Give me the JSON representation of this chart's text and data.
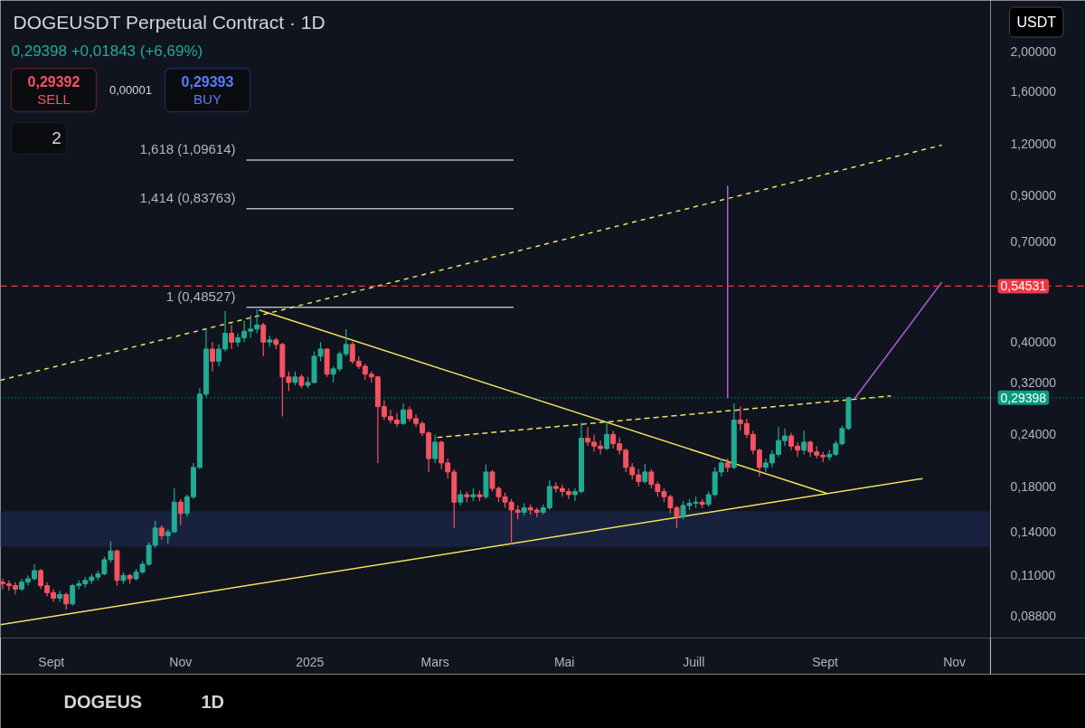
{
  "chart_data": {
    "type": "candlestick",
    "title": "DOGEUSDT Perpetual Contract · 1D",
    "subtitle": "0,29398 +0,01843 (+6,69%)",
    "annotations": [
      "0,29392",
      "SELL",
      "0,00001",
      "0,29393",
      "BUY",
      "2",
      "USDT",
      "DOGEUS",
      "1D"
    ],
    "x": [
      "2024-08-09",
      "2024-08-12",
      "2024-08-15",
      "2024-08-18",
      "2024-08-21",
      "2024-08-24",
      "2024-08-27",
      "2024-08-30",
      "2024-09-02",
      "2024-09-05",
      "2024-09-08",
      "2024-09-11",
      "2024-09-14",
      "2024-09-17",
      "2024-09-20",
      "2024-09-23",
      "2024-09-26",
      "2024-09-29",
      "2024-10-02",
      "2024-10-05",
      "2024-10-08",
      "2024-10-11",
      "2024-10-14",
      "2024-10-17",
      "2024-10-20",
      "2024-10-23",
      "2024-10-26",
      "2024-10-29",
      "2024-11-01",
      "2024-11-04",
      "2024-11-07",
      "2024-11-10",
      "2024-11-13",
      "2024-11-16",
      "2024-11-19",
      "2024-11-22",
      "2024-11-25",
      "2024-11-28",
      "2024-12-01",
      "2024-12-04",
      "2024-12-07",
      "2024-12-10",
      "2024-12-13",
      "2024-12-16",
      "2024-12-19",
      "2024-12-22",
      "2024-12-25",
      "2024-12-28",
      "2024-12-31",
      "2025-01-03",
      "2025-01-06",
      "2025-01-09",
      "2025-01-12",
      "2025-01-15",
      "2025-01-18",
      "2025-01-21",
      "2025-01-24",
      "2025-01-27",
      "2025-01-30",
      "2025-02-02",
      "2025-02-05",
      "2025-02-08",
      "2025-02-11",
      "2025-02-14",
      "2025-02-17",
      "2025-02-20",
      "2025-02-23",
      "2025-02-26",
      "2025-03-01",
      "2025-03-04",
      "2025-03-07",
      "2025-03-10",
      "2025-03-13",
      "2025-03-16",
      "2025-03-19",
      "2025-03-22",
      "2025-03-25",
      "2025-03-28",
      "2025-03-31",
      "2025-04-03",
      "2025-04-06",
      "2025-04-09",
      "2025-04-12",
      "2025-04-15",
      "2025-04-18",
      "2025-04-21",
      "2025-04-24",
      "2025-04-27",
      "2025-04-30",
      "2025-05-03",
      "2025-05-06",
      "2025-05-09",
      "2025-05-12",
      "2025-05-15",
      "2025-05-18",
      "2025-05-21",
      "2025-05-24",
      "2025-05-27",
      "2025-05-30",
      "2025-06-02",
      "2025-06-05",
      "2025-06-08",
      "2025-06-11",
      "2025-06-14",
      "2025-06-17",
      "2025-06-20",
      "2025-06-23",
      "2025-06-26",
      "2025-06-29",
      "2025-07-02",
      "2025-07-05",
      "2025-07-08",
      "2025-07-11",
      "2025-07-14",
      "2025-07-17",
      "2025-07-20",
      "2025-07-23",
      "2025-07-26",
      "2025-07-29",
      "2025-08-01",
      "2025-08-04",
      "2025-08-07",
      "2025-08-10",
      "2025-08-13",
      "2025-08-16",
      "2025-08-19",
      "2025-08-22",
      "2025-08-25",
      "2025-08-28",
      "2025-08-31",
      "2025-09-03",
      "2025-09-06",
      "2025-09-09",
      "2025-09-12"
    ],
    "ohlc": [
      [
        0.106,
        0.108,
        0.102,
        0.105
      ],
      [
        0.105,
        0.107,
        0.101,
        0.104
      ],
      [
        0.104,
        0.106,
        0.099,
        0.102
      ],
      [
        0.102,
        0.108,
        0.101,
        0.106
      ],
      [
        0.106,
        0.11,
        0.104,
        0.108
      ],
      [
        0.108,
        0.117,
        0.107,
        0.113
      ],
      [
        0.113,
        0.114,
        0.102,
        0.104
      ],
      [
        0.104,
        0.106,
        0.098,
        0.1
      ],
      [
        0.1,
        0.102,
        0.095,
        0.097
      ],
      [
        0.097,
        0.101,
        0.095,
        0.099
      ],
      [
        0.099,
        0.1,
        0.091,
        0.094
      ],
      [
        0.094,
        0.105,
        0.093,
        0.104
      ],
      [
        0.104,
        0.107,
        0.102,
        0.105
      ],
      [
        0.105,
        0.109,
        0.103,
        0.107
      ],
      [
        0.107,
        0.111,
        0.105,
        0.109
      ],
      [
        0.109,
        0.113,
        0.107,
        0.111
      ],
      [
        0.111,
        0.122,
        0.11,
        0.12
      ],
      [
        0.12,
        0.133,
        0.118,
        0.126
      ],
      [
        0.126,
        0.127,
        0.104,
        0.107
      ],
      [
        0.107,
        0.112,
        0.105,
        0.11
      ],
      [
        0.11,
        0.111,
        0.105,
        0.108
      ],
      [
        0.108,
        0.114,
        0.107,
        0.112
      ],
      [
        0.112,
        0.119,
        0.111,
        0.117
      ],
      [
        0.117,
        0.132,
        0.116,
        0.13
      ],
      [
        0.13,
        0.149,
        0.128,
        0.143
      ],
      [
        0.143,
        0.145,
        0.134,
        0.137
      ],
      [
        0.137,
        0.142,
        0.131,
        0.14
      ],
      [
        0.14,
        0.178,
        0.139,
        0.165
      ],
      [
        0.165,
        0.168,
        0.145,
        0.155
      ],
      [
        0.155,
        0.172,
        0.152,
        0.17
      ],
      [
        0.17,
        0.205,
        0.168,
        0.2
      ],
      [
        0.2,
        0.31,
        0.198,
        0.3
      ],
      [
        0.3,
        0.43,
        0.295,
        0.385
      ],
      [
        0.385,
        0.4,
        0.34,
        0.36
      ],
      [
        0.36,
        0.395,
        0.35,
        0.385
      ],
      [
        0.385,
        0.475,
        0.38,
        0.42
      ],
      [
        0.42,
        0.44,
        0.385,
        0.4
      ],
      [
        0.4,
        0.42,
        0.39,
        0.41
      ],
      [
        0.41,
        0.45,
        0.4,
        0.425
      ],
      [
        0.425,
        0.465,
        0.41,
        0.43
      ],
      [
        0.43,
        0.48,
        0.42,
        0.44
      ],
      [
        0.44,
        0.445,
        0.37,
        0.4
      ],
      [
        0.4,
        0.415,
        0.39,
        0.405
      ],
      [
        0.405,
        0.41,
        0.385,
        0.395
      ],
      [
        0.395,
        0.398,
        0.265,
        0.33
      ],
      [
        0.33,
        0.34,
        0.305,
        0.32
      ],
      [
        0.32,
        0.34,
        0.315,
        0.33
      ],
      [
        0.33,
        0.335,
        0.31,
        0.315
      ],
      [
        0.315,
        0.33,
        0.31,
        0.32
      ],
      [
        0.32,
        0.38,
        0.318,
        0.37
      ],
      [
        0.37,
        0.4,
        0.36,
        0.385
      ],
      [
        0.385,
        0.386,
        0.33,
        0.335
      ],
      [
        0.335,
        0.35,
        0.32,
        0.345
      ],
      [
        0.345,
        0.38,
        0.34,
        0.375
      ],
      [
        0.375,
        0.43,
        0.37,
        0.395
      ],
      [
        0.395,
        0.4,
        0.355,
        0.36
      ],
      [
        0.36,
        0.37,
        0.345,
        0.35
      ],
      [
        0.35,
        0.355,
        0.325,
        0.335
      ],
      [
        0.335,
        0.34,
        0.32,
        0.33
      ],
      [
        0.33,
        0.332,
        0.205,
        0.28
      ],
      [
        0.28,
        0.29,
        0.26,
        0.265
      ],
      [
        0.265,
        0.275,
        0.255,
        0.26
      ],
      [
        0.26,
        0.27,
        0.25,
        0.255
      ],
      [
        0.255,
        0.285,
        0.253,
        0.275
      ],
      [
        0.275,
        0.28,
        0.258,
        0.262
      ],
      [
        0.262,
        0.268,
        0.25,
        0.255
      ],
      [
        0.255,
        0.258,
        0.238,
        0.242
      ],
      [
        0.242,
        0.244,
        0.195,
        0.21
      ],
      [
        0.21,
        0.24,
        0.205,
        0.23
      ],
      [
        0.23,
        0.232,
        0.198,
        0.205
      ],
      [
        0.205,
        0.21,
        0.188,
        0.195
      ],
      [
        0.195,
        0.198,
        0.143,
        0.165
      ],
      [
        0.165,
        0.176,
        0.162,
        0.172
      ],
      [
        0.172,
        0.175,
        0.165,
        0.17
      ],
      [
        0.17,
        0.178,
        0.166,
        0.172
      ],
      [
        0.172,
        0.176,
        0.166,
        0.17
      ],
      [
        0.17,
        0.203,
        0.168,
        0.195
      ],
      [
        0.195,
        0.197,
        0.175,
        0.178
      ],
      [
        0.178,
        0.18,
        0.165,
        0.17
      ],
      [
        0.17,
        0.174,
        0.16,
        0.165
      ],
      [
        0.165,
        0.168,
        0.131,
        0.158
      ],
      [
        0.158,
        0.162,
        0.15,
        0.156
      ],
      [
        0.156,
        0.164,
        0.153,
        0.16
      ],
      [
        0.16,
        0.163,
        0.154,
        0.158
      ],
      [
        0.158,
        0.16,
        0.152,
        0.156
      ],
      [
        0.156,
        0.163,
        0.154,
        0.16
      ],
      [
        0.16,
        0.186,
        0.158,
        0.18
      ],
      [
        0.18,
        0.184,
        0.174,
        0.178
      ],
      [
        0.178,
        0.182,
        0.17,
        0.175
      ],
      [
        0.175,
        0.178,
        0.168,
        0.172
      ],
      [
        0.172,
        0.178,
        0.166,
        0.175
      ],
      [
        0.175,
        0.256,
        0.173,
        0.235
      ],
      [
        0.235,
        0.25,
        0.225,
        0.23
      ],
      [
        0.23,
        0.24,
        0.218,
        0.225
      ],
      [
        0.225,
        0.232,
        0.215,
        0.222
      ],
      [
        0.222,
        0.255,
        0.22,
        0.24
      ],
      [
        0.24,
        0.245,
        0.222,
        0.228
      ],
      [
        0.228,
        0.236,
        0.215,
        0.22
      ],
      [
        0.22,
        0.222,
        0.195,
        0.2
      ],
      [
        0.2,
        0.205,
        0.187,
        0.192
      ],
      [
        0.192,
        0.198,
        0.18,
        0.185
      ],
      [
        0.185,
        0.204,
        0.183,
        0.195
      ],
      [
        0.195,
        0.198,
        0.178,
        0.182
      ],
      [
        0.182,
        0.185,
        0.17,
        0.175
      ],
      [
        0.175,
        0.178,
        0.165,
        0.17
      ],
      [
        0.17,
        0.172,
        0.155,
        0.16
      ],
      [
        0.16,
        0.162,
        0.143,
        0.152
      ],
      [
        0.152,
        0.166,
        0.15,
        0.162
      ],
      [
        0.162,
        0.168,
        0.158,
        0.164
      ],
      [
        0.164,
        0.17,
        0.16,
        0.165
      ],
      [
        0.165,
        0.168,
        0.16,
        0.163
      ],
      [
        0.163,
        0.175,
        0.161,
        0.172
      ],
      [
        0.172,
        0.2,
        0.17,
        0.195
      ],
      [
        0.195,
        0.21,
        0.19,
        0.205
      ],
      [
        0.205,
        0.21,
        0.195,
        0.2
      ],
      [
        0.2,
        0.285,
        0.198,
        0.26
      ],
      [
        0.26,
        0.28,
        0.245,
        0.255
      ],
      [
        0.255,
        0.262,
        0.235,
        0.24
      ],
      [
        0.24,
        0.245,
        0.215,
        0.22
      ],
      [
        0.22,
        0.222,
        0.19,
        0.2
      ],
      [
        0.2,
        0.21,
        0.195,
        0.205
      ],
      [
        0.205,
        0.22,
        0.2,
        0.215
      ],
      [
        0.215,
        0.25,
        0.212,
        0.232
      ],
      [
        0.232,
        0.248,
        0.225,
        0.238
      ],
      [
        0.238,
        0.242,
        0.22,
        0.225
      ],
      [
        0.225,
        0.23,
        0.212,
        0.22
      ],
      [
        0.22,
        0.245,
        0.215,
        0.23
      ],
      [
        0.23,
        0.232,
        0.212,
        0.218
      ],
      [
        0.218,
        0.225,
        0.21,
        0.214
      ],
      [
        0.214,
        0.218,
        0.206,
        0.212
      ],
      [
        0.212,
        0.22,
        0.208,
        0.215
      ],
      [
        0.215,
        0.232,
        0.213,
        0.228
      ],
      [
        0.228,
        0.252,
        0.226,
        0.248
      ],
      [
        0.248,
        0.296,
        0.246,
        0.29398
      ]
    ],
    "colors": [
      "#f7525f",
      "#f7525f",
      "#f7525f",
      "#22ab94",
      "#22ab94",
      "#22ab94",
      "#f7525f",
      "#f7525f",
      "#f7525f",
      "#22ab94",
      "#f7525f",
      "#22ab94",
      "#22ab94",
      "#22ab94",
      "#22ab94",
      "#22ab94",
      "#22ab94",
      "#22ab94",
      "#f7525f",
      "#22ab94",
      "#f7525f",
      "#22ab94",
      "#22ab94",
      "#22ab94",
      "#22ab94",
      "#f7525f",
      "#22ab94",
      "#22ab94",
      "#f7525f",
      "#22ab94",
      "#22ab94",
      "#22ab94",
      "#22ab94",
      "#f7525f",
      "#22ab94",
      "#22ab94",
      "#f7525f",
      "#22ab94",
      "#22ab94",
      "#22ab94",
      "#22ab94",
      "#f7525f",
      "#22ab94",
      "#f7525f",
      "#f7525f",
      "#f7525f",
      "#22ab94",
      "#f7525f",
      "#22ab94",
      "#22ab94",
      "#22ab94",
      "#f7525f",
      "#22ab94",
      "#22ab94",
      "#22ab94",
      "#f7525f",
      "#f7525f",
      "#f7525f",
      "#f7525f",
      "#f7525f",
      "#f7525f",
      "#f7525f",
      "#f7525f",
      "#22ab94",
      "#f7525f",
      "#f7525f",
      "#f7525f",
      "#f7525f",
      "#22ab94",
      "#f7525f",
      "#f7525f",
      "#f7525f",
      "#22ab94",
      "#f7525f",
      "#22ab94",
      "#f7525f",
      "#22ab94",
      "#f7525f",
      "#f7525f",
      "#f7525f",
      "#f7525f",
      "#f7525f",
      "#22ab94",
      "#f7525f",
      "#f7525f",
      "#22ab94",
      "#22ab94",
      "#f7525f",
      "#f7525f",
      "#f7525f",
      "#22ab94",
      "#22ab94",
      "#f7525f",
      "#f7525f",
      "#f7525f",
      "#22ab94",
      "#f7525f",
      "#f7525f",
      "#f7525f",
      "#f7525f",
      "#f7525f",
      "#22ab94",
      "#f7525f",
      "#f7525f",
      "#f7525f",
      "#f7525f",
      "#f7525f",
      "#22ab94",
      "#22ab94",
      "#22ab94",
      "#f7525f",
      "#22ab94",
      "#22ab94",
      "#22ab94",
      "#f7525f",
      "#22ab94",
      "#f7525f",
      "#f7525f",
      "#f7525f",
      "#f7525f",
      "#22ab94",
      "#22ab94",
      "#22ab94",
      "#22ab94",
      "#f7525f",
      "#f7525f",
      "#22ab94",
      "#f7525f",
      "#f7525f",
      "#f7525f",
      "#22ab94",
      "#22ab94",
      "#22ab94",
      "#22ab94"
    ],
    "series": [
      {
        "type": "line",
        "name": "1,618 (1,09614)",
        "color": "#b2b5be",
        "x": [
          "2024-12-02",
          "2025-04-07"
        ],
        "values": [
          1.09614,
          1.09614
        ]
      },
      {
        "type": "line",
        "name": "1,414 (0,83763)",
        "color": "#b2b5be",
        "x": [
          "2024-12-02",
          "2025-04-07"
        ],
        "values": [
          0.83763,
          0.83763
        ]
      },
      {
        "type": "line",
        "name": "1 (0,48527)",
        "color": "#b2b5be",
        "x": [
          "2024-12-02",
          "2025-04-07"
        ],
        "values": [
          0.48527,
          0.48527
        ]
      },
      {
        "type": "line",
        "color": "#f2e25b",
        "line_style": "dashed",
        "x": [
          "2024-08-08",
          "2025-10-26"
        ],
        "values": [
          0.324,
          1.19
        ]
      },
      {
        "type": "line",
        "color": "#f2e25b",
        "x": [
          "2024-08-08",
          "2025-10-17"
        ],
        "values": [
          0.0838,
          0.188
        ]
      },
      {
        "type": "line",
        "color": "#f2e25b",
        "x": [
          "2024-12-08",
          "2025-09-02"
        ],
        "values": [
          0.478,
          0.173
        ]
      },
      {
        "type": "line",
        "color": "#f2e25b",
        "line_style": "dashed",
        "x": [
          "2025-03-02",
          "2025-10-02"
        ],
        "values": [
          0.236,
          0.297
        ]
      },
      {
        "type": "line",
        "color": "#b15fd8",
        "x": [
          "2025-07-17",
          "2025-07-17"
        ],
        "values": [
          0.293,
          0.951
        ]
      },
      {
        "type": "line",
        "color": "#b15fd8",
        "x": [
          "2025-09-15",
          "2025-10-26"
        ],
        "values": [
          0.293,
          0.557
        ]
      }
    ],
    "ref_lines": [
      {
        "axis": "y",
        "value": 0.54531,
        "label": "0,54531",
        "color": "#f23645",
        "line_style": "dashed"
      },
      {
        "axis": "y",
        "value": 0.29398,
        "label": "0,29398",
        "color": "#089981",
        "line_style": "dotted"
      }
    ],
    "bands": [
      {
        "axis": "y",
        "from": 0.129,
        "to": 0.157,
        "color": "#18223e"
      }
    ],
    "xlim": [
      "2024-08-08",
      "2025-11-18"
    ],
    "ylim": [
      0.0778,
      2.65
    ],
    "xticks": [
      {
        "value": "2024-09-01",
        "label": "Sept"
      },
      {
        "value": "2024-11-01",
        "label": "Nov"
      },
      {
        "value": "2025-01-01",
        "label": "2025"
      },
      {
        "value": "2025-03-01",
        "label": "Mars"
      },
      {
        "value": "2025-05-01",
        "label": "Mai"
      },
      {
        "value": "2025-07-01",
        "label": "Juill"
      },
      {
        "value": "2025-09-01",
        "label": "Sept"
      },
      {
        "value": "2025-11-01",
        "label": "Nov"
      }
    ],
    "yticks": [
      {
        "value": 2,
        "label": "2,00000"
      },
      {
        "value": 1.6,
        "label": "1,60000"
      },
      {
        "value": 1.2,
        "label": "1,20000"
      },
      {
        "value": 0.9,
        "label": "0,90000"
      },
      {
        "value": 0.7,
        "label": "0,70000"
      },
      {
        "value": 0.4,
        "label": "0,40000"
      },
      {
        "value": 0.32,
        "label": "0,32000"
      },
      {
        "value": 0.24,
        "label": "0,24000"
      },
      {
        "value": 0.18,
        "label": "0,18000"
      },
      {
        "value": 0.14,
        "label": "0,14000"
      },
      {
        "value": 0.11,
        "label": "0,11000"
      },
      {
        "value": 0.088,
        "label": "0,08800"
      }
    ],
    "log": true,
    "grid": false
  }
}
